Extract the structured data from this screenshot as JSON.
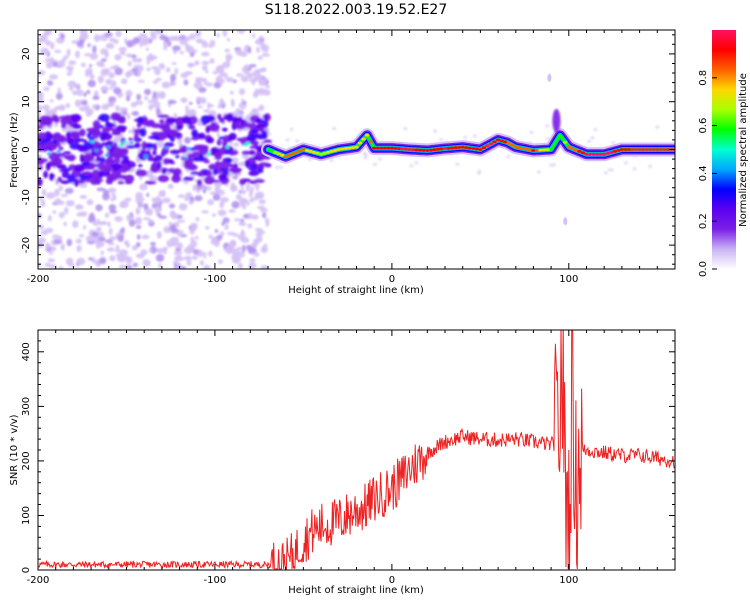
{
  "title": "S118.2022.003.19.52.E27",
  "colors": {
    "snr_line": "#ee2222",
    "frame": "#000000"
  },
  "colormap": [
    "#ffffff",
    "#c9b3f4",
    "#7a1fe8",
    "#5b00f0",
    "#0000ff",
    "#00a8ff",
    "#00ffd0",
    "#00ff00",
    "#aaff00",
    "#ffd800",
    "#ff6000",
    "#ff0000",
    "#ff1060"
  ],
  "chart_data": [
    {
      "type": "heatmap",
      "xlabel": "Height of straight line (km)",
      "ylabel": "Frequency (Hz)",
      "xlim": [
        -200,
        160
      ],
      "ylim": [
        -25,
        25
      ],
      "x_ticks": [
        -200,
        -100,
        0,
        100
      ],
      "y_ticks": [
        -20,
        -10,
        0,
        10,
        20
      ],
      "colorbar": {
        "label": "Normalized spectral amplitude",
        "range": [
          0,
          1
        ],
        "ticks": [
          0.0,
          0.2,
          0.4,
          0.6,
          0.8
        ]
      },
      "ridge": {
        "x": [
          -70,
          -60,
          -50,
          -40,
          -30,
          -20,
          -14,
          -10,
          0,
          10,
          20,
          30,
          40,
          50,
          55,
          60,
          65,
          70,
          80,
          90,
          95,
          100,
          110,
          120,
          130,
          140,
          150,
          160
        ],
        "freq": [
          0,
          -1.5,
          0,
          -1,
          0,
          0.5,
          3,
          0.3,
          0.3,
          0,
          -0.2,
          0.2,
          0.5,
          0,
          1,
          2,
          1.5,
          0.5,
          -0.2,
          0,
          3,
          0.5,
          -1,
          -1,
          0,
          0,
          0,
          0
        ],
        "amp": [
          0.5,
          0.75,
          0.72,
          0.6,
          0.65,
          0.7,
          0.7,
          0.82,
          0.85,
          0.9,
          0.82,
          0.88,
          0.85,
          0.8,
          0.9,
          0.85,
          0.8,
          0.75,
          0.8,
          0.55,
          0.45,
          0.72,
          0.9,
          0.9,
          0.85,
          0.9,
          0.95,
          0.95
        ]
      }
    },
    {
      "type": "line",
      "xlabel": "Height of straight line (km)",
      "ylabel": "SNR (10 * v/v)",
      "xlim": [
        -200,
        160
      ],
      "ylim": [
        0,
        440
      ],
      "x_ticks": [
        -200,
        -100,
        0,
        100
      ],
      "y_ticks": [
        0,
        100,
        200,
        300,
        400
      ],
      "series": [
        {
          "x": [
            -200,
            -180,
            -160,
            -140,
            -120,
            -100,
            -80,
            -70,
            -60,
            -55,
            -50,
            -45,
            -40,
            -35,
            -30,
            -25,
            -20,
            -15,
            -10,
            -5,
            0,
            5,
            10,
            15,
            20,
            30,
            40,
            50,
            60,
            70,
            80,
            90,
            94,
            96,
            98,
            100,
            102,
            104,
            106,
            110,
            120,
            130,
            140,
            150,
            160
          ],
          "y": [
            10,
            10,
            10,
            10,
            10,
            10,
            10,
            10,
            12,
            30,
            55,
            70,
            80,
            85,
            90,
            100,
            110,
            115,
            130,
            140,
            150,
            165,
            185,
            200,
            215,
            235,
            245,
            240,
            238,
            240,
            235,
            230,
            235,
            380,
            180,
            80,
            350,
            140,
            215,
            220,
            215,
            210,
            210,
            205,
            200
          ]
        }
      ]
    }
  ]
}
